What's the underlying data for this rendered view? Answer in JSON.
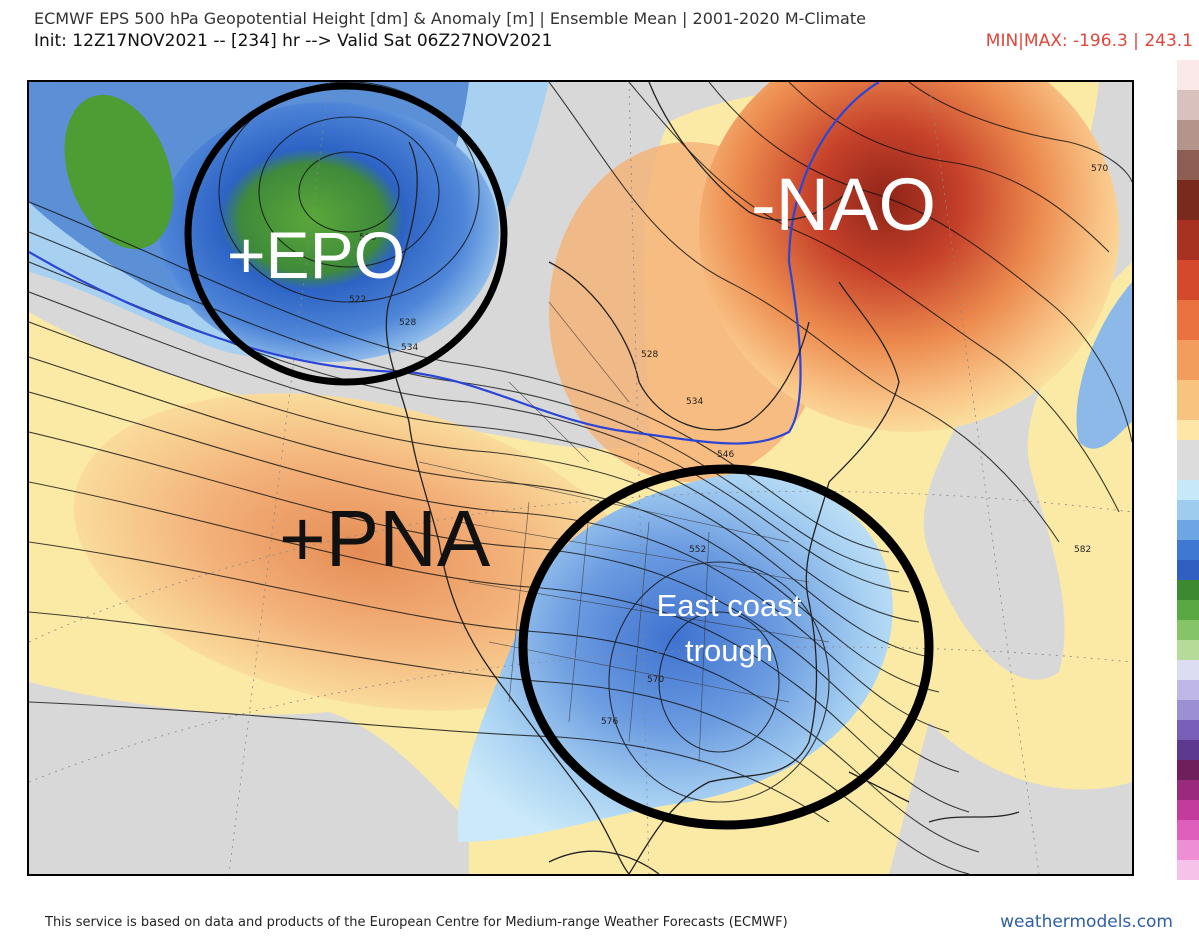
{
  "header": {
    "title": "ECMWF EPS 500 hPa Geopotential Height [dm] & Anomaly [m] | Ensemble Mean | 2001-2020 M-Climate",
    "init": "Init: 12Z17NOV2021 -- [234] hr --> Valid Sat 06Z27NOV2021",
    "minmax": "MIN|MAX: -196.3 | 243.1"
  },
  "annotations": {
    "epo": "+EPO",
    "nao": "-NAO",
    "pna": "+PNA",
    "trough_line1": "East coast",
    "trough_line2": "trough"
  },
  "contour_labels": [
    "570",
    "522",
    "534",
    "528",
    "516",
    "552",
    "546",
    "582",
    "570",
    "576",
    "528",
    "534"
  ],
  "colors": {
    "positive_strong": "#b8361f",
    "positive_mid": "#ef8b4a",
    "positive_weak": "#fce9a1",
    "negative_weak": "#bfe4f5",
    "negative_mid": "#5b8fd6",
    "negative_strong": "#2f5fc4",
    "green_strong": "#4b9d34",
    "neutral": "#d9d9d9"
  },
  "footer": {
    "credit": "This service is based on data and products of the European Centre for Medium-range Weather Forecasts (ECMWF)",
    "brand": "weathermodels.com"
  }
}
